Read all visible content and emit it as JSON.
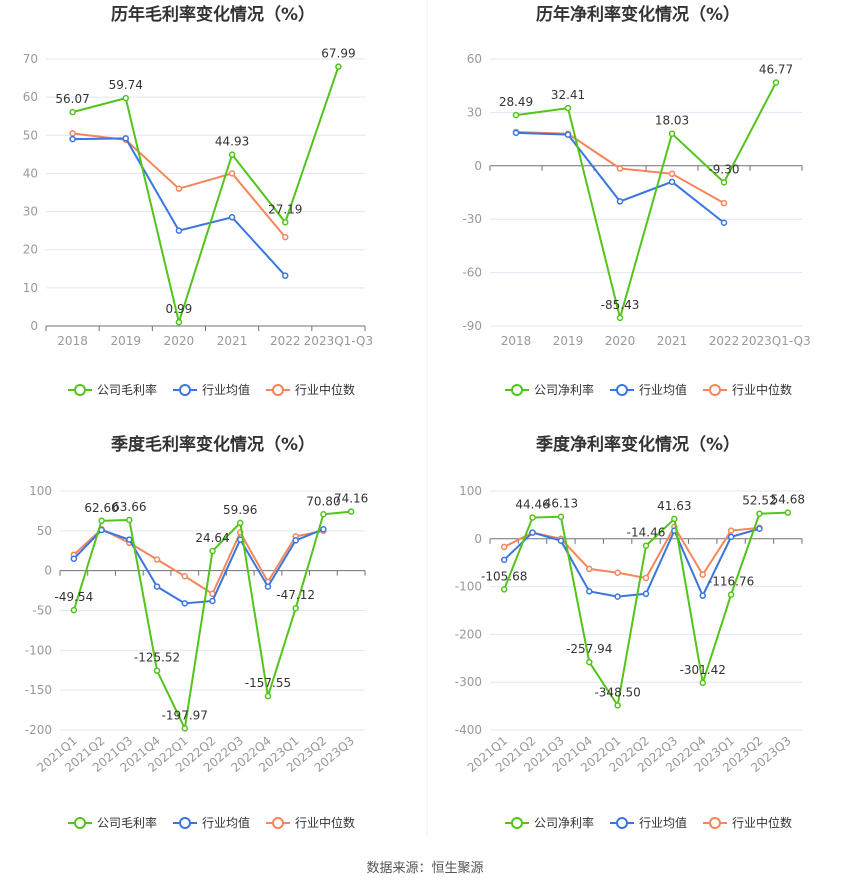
{
  "colors": {
    "company": "#52c41a",
    "avg": "#3a76e0",
    "median": "#f5855b",
    "grid": "#e0e6f1",
    "axis": "#6e7079"
  },
  "source": "数据来源：恒生聚源",
  "chart_data": [
    {
      "type": "line",
      "title": "历年毛利率变化情况（%）",
      "categories": [
        "2018",
        "2019",
        "2020",
        "2021",
        "2022",
        "2023Q1-Q3"
      ],
      "ylim": [
        0,
        70
      ],
      "yticks": [
        0,
        10,
        20,
        30,
        40,
        50,
        60,
        70
      ],
      "grid": true,
      "legend": "bottom",
      "series": [
        {
          "name": "公司毛利率",
          "key": "company",
          "values": [
            56.07,
            59.74,
            0.99,
            44.93,
            27.19,
            67.99
          ],
          "labels": [
            "56.07",
            "59.74",
            "0.99",
            "44.93",
            "27.19",
            "67.99"
          ]
        },
        {
          "name": "行业均值",
          "key": "avg",
          "values": [
            49.0,
            49.2,
            25.0,
            28.5,
            13.2,
            null
          ]
        },
        {
          "name": "行业中位数",
          "key": "median",
          "values": [
            50.5,
            48.8,
            36.0,
            40.0,
            23.3,
            null
          ]
        }
      ]
    },
    {
      "type": "line",
      "title": "历年净利率变化情况（%）",
      "categories": [
        "2018",
        "2019",
        "2020",
        "2021",
        "2022",
        "2023Q1-Q3"
      ],
      "ylim": [
        -90,
        60
      ],
      "yticks": [
        -90,
        -60,
        -30,
        0,
        30,
        60
      ],
      "grid": true,
      "legend": "bottom",
      "series": [
        {
          "name": "公司净利率",
          "key": "company",
          "values": [
            28.49,
            32.41,
            -85.43,
            18.03,
            -9.3,
            46.77
          ],
          "labels": [
            "28.49",
            "32.41",
            "-85.43",
            "18.03",
            "-9.30",
            "46.77"
          ]
        },
        {
          "name": "行业均值",
          "key": "avg",
          "values": [
            18.5,
            17.5,
            -20.0,
            -9.0,
            -32.0,
            null
          ]
        },
        {
          "name": "行业中位数",
          "key": "median",
          "values": [
            19.0,
            18.0,
            -1.5,
            -4.5,
            -21.0,
            null
          ]
        }
      ]
    },
    {
      "type": "line",
      "title": "季度毛利率变化情况（%）",
      "categories": [
        "2021Q1",
        "2021Q2",
        "2021Q3",
        "2021Q4",
        "2022Q1",
        "2022Q2",
        "2022Q3",
        "2022Q4",
        "2023Q1",
        "2023Q2",
        "2023Q3"
      ],
      "ylim": [
        -200,
        100
      ],
      "yticks": [
        -200,
        -150,
        -100,
        -50,
        0,
        50,
        100
      ],
      "grid": true,
      "legend": "bottom",
      "series": [
        {
          "name": "公司毛利率",
          "key": "company",
          "values": [
            -49.54,
            62.6,
            63.66,
            -125.52,
            -197.97,
            24.64,
            59.96,
            -157.55,
            -47.12,
            70.8,
            74.16
          ],
          "labels": [
            "-49.54",
            "62.60",
            "63.66",
            "-125.52",
            "-197.97",
            "24.64",
            "59.96",
            "-157.55",
            "-47.12",
            "70.80",
            "74.16"
          ]
        },
        {
          "name": "行业均值",
          "key": "avg",
          "values": [
            15,
            51,
            39,
            -20,
            -41,
            -38,
            39,
            -20,
            38,
            52,
            null
          ]
        },
        {
          "name": "行业中位数",
          "key": "median",
          "values": [
            20,
            52,
            35,
            14,
            -7,
            -29,
            48,
            -14,
            43,
            50,
            null
          ]
        }
      ]
    },
    {
      "type": "line",
      "title": "季度净利率变化情况（%）",
      "categories": [
        "2021Q1",
        "2021Q2",
        "2021Q3",
        "2021Q4",
        "2022Q1",
        "2022Q2",
        "2022Q3",
        "2022Q4",
        "2023Q1",
        "2023Q2",
        "2023Q3"
      ],
      "ylim": [
        -400,
        100
      ],
      "yticks": [
        -400,
        -300,
        -200,
        -100,
        0,
        100
      ],
      "grid": true,
      "legend": "bottom",
      "series": [
        {
          "name": "公司净利率",
          "key": "company",
          "values": [
            -105.68,
            44.46,
            46.13,
            -257.94,
            -348.5,
            -14.46,
            41.63,
            -301.42,
            -116.76,
            52.52,
            54.68
          ],
          "labels": [
            "-105.68",
            "44.46",
            "46.13",
            "-257.94",
            "-348.50",
            "-14.46",
            "41.63",
            "-301.42",
            "-116.76",
            "52.52",
            "54.68"
          ]
        },
        {
          "name": "行业均值",
          "key": "avg",
          "values": [
            -44,
            13,
            -4,
            -110,
            -121,
            -115,
            17,
            -119,
            4,
            21,
            null
          ]
        },
        {
          "name": "行业中位数",
          "key": "median",
          "values": [
            -17,
            13,
            0,
            -63,
            -71,
            -82,
            25,
            -75,
            17,
            23,
            null
          ]
        }
      ]
    }
  ]
}
